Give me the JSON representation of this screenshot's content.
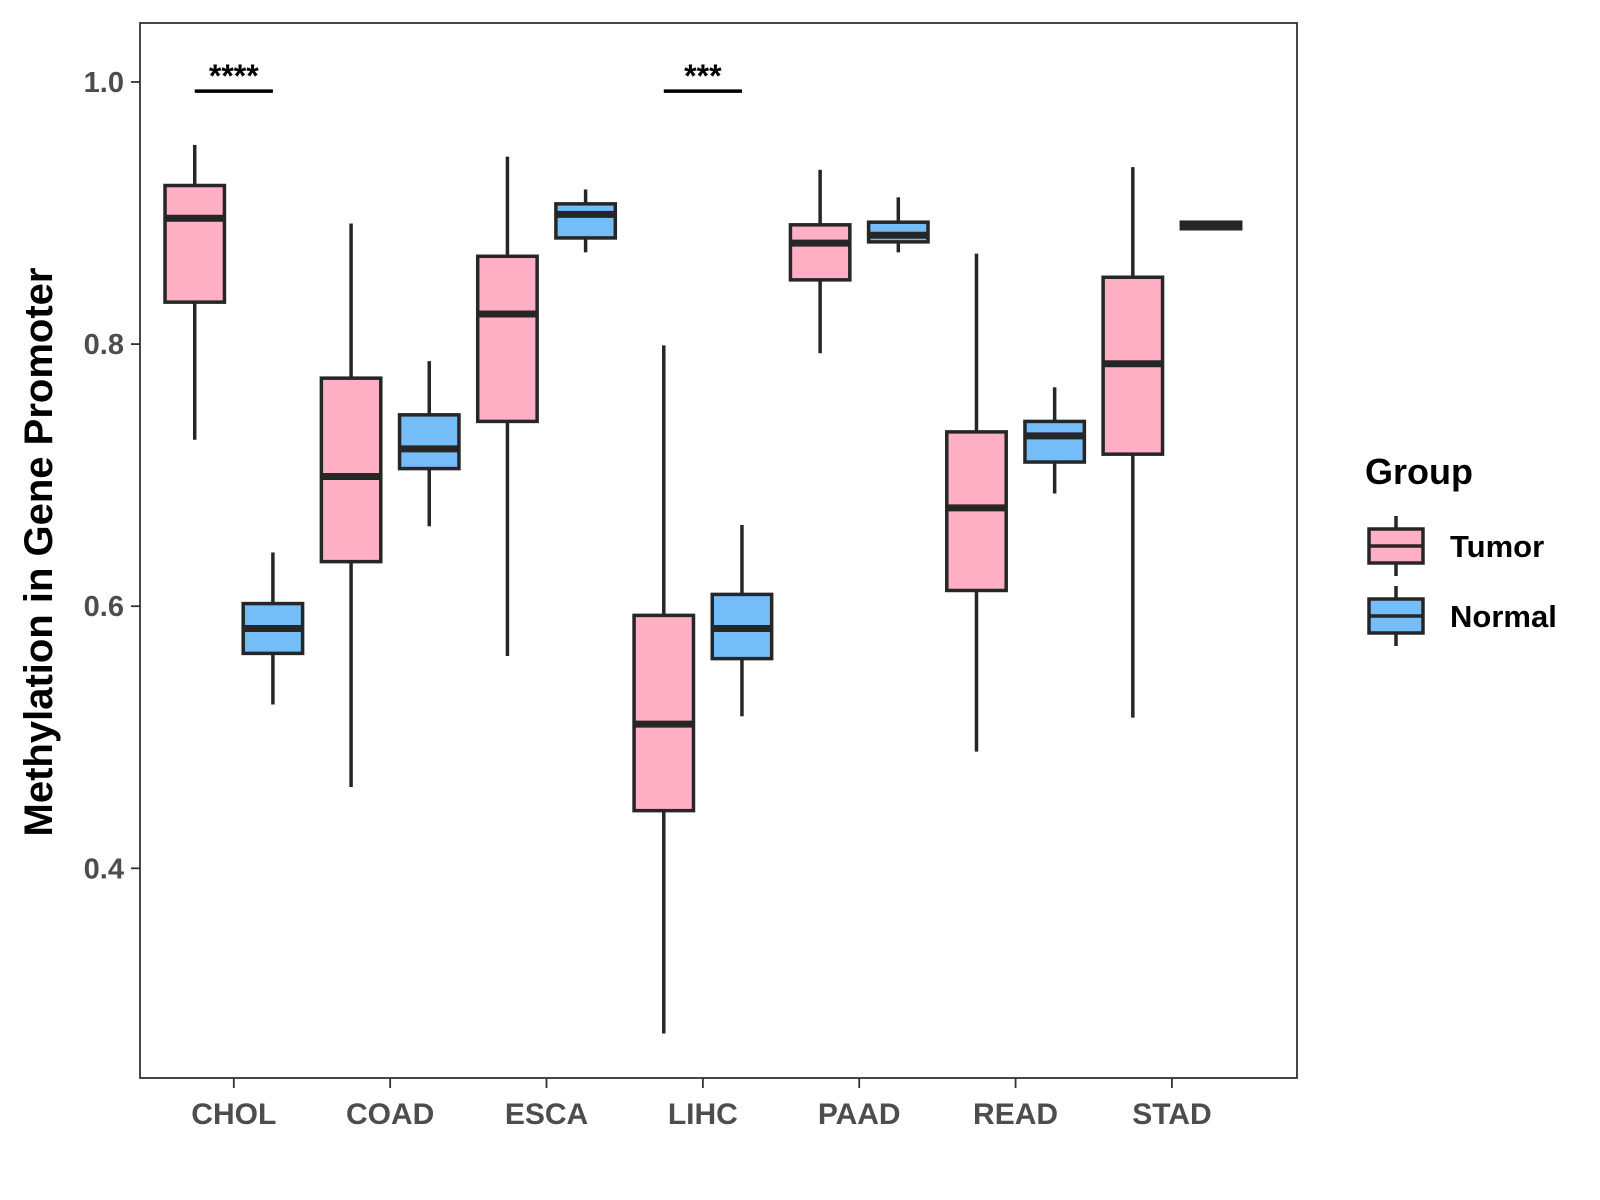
{
  "chart_data": {
    "type": "boxplot",
    "ylabel": "Methylation in Gene Promoter",
    "xlabel": "",
    "ylim": [
      0.24,
      1.045
    ],
    "yticks": [
      0.4,
      0.6,
      0.8,
      1.0
    ],
    "ytick_labels": [
      "0.4",
      "0.6",
      "0.8",
      "1.0"
    ],
    "categories": [
      "CHOL",
      "COAD",
      "ESCA",
      "LIHC",
      "PAAD",
      "READ",
      "STAD"
    ],
    "legend": {
      "title": "Group",
      "position": "right",
      "entries": [
        {
          "name": "Tumor",
          "color": "#ffb0c4"
        },
        {
          "name": "Normal",
          "color": "#74bdf8"
        }
      ]
    },
    "series": [
      {
        "name": "Tumor",
        "color": "#ffb0c4",
        "boxes": [
          {
            "category": "CHOL",
            "min": 0.727,
            "q1": 0.832,
            "median": 0.896,
            "q3": 0.921,
            "max": 0.952
          },
          {
            "category": "COAD",
            "min": 0.462,
            "q1": 0.634,
            "median": 0.699,
            "q3": 0.774,
            "max": 0.892
          },
          {
            "category": "ESCA",
            "min": 0.562,
            "q1": 0.741,
            "median": 0.823,
            "q3": 0.867,
            "max": 0.943
          },
          {
            "category": "LIHC",
            "min": 0.274,
            "q1": 0.444,
            "median": 0.51,
            "q3": 0.593,
            "max": 0.799
          },
          {
            "category": "PAAD",
            "min": 0.793,
            "q1": 0.849,
            "median": 0.877,
            "q3": 0.891,
            "max": 0.933
          },
          {
            "category": "READ",
            "min": 0.489,
            "q1": 0.612,
            "median": 0.675,
            "q3": 0.733,
            "max": 0.869
          },
          {
            "category": "STAD",
            "min": 0.515,
            "q1": 0.716,
            "median": 0.785,
            "q3": 0.851,
            "max": 0.935
          }
        ]
      },
      {
        "name": "Normal",
        "color": "#74bdf8",
        "boxes": [
          {
            "category": "CHOL",
            "min": 0.525,
            "q1": 0.564,
            "median": 0.583,
            "q3": 0.602,
            "max": 0.641
          },
          {
            "category": "COAD",
            "min": 0.661,
            "q1": 0.705,
            "median": 0.72,
            "q3": 0.746,
            "max": 0.787
          },
          {
            "category": "ESCA",
            "min": 0.87,
            "q1": 0.881,
            "median": 0.899,
            "q3": 0.907,
            "max": 0.918
          },
          {
            "category": "LIHC",
            "min": 0.516,
            "q1": 0.56,
            "median": 0.583,
            "q3": 0.609,
            "max": 0.662
          },
          {
            "category": "PAAD",
            "min": 0.87,
            "q1": 0.878,
            "median": 0.883,
            "q3": 0.893,
            "max": 0.912
          },
          {
            "category": "READ",
            "min": 0.686,
            "q1": 0.71,
            "median": 0.73,
            "q3": 0.741,
            "max": 0.767
          },
          {
            "category": "STAD",
            "min": 0.887,
            "q1": 0.888,
            "median": 0.89,
            "q3": 0.893,
            "max": 0.894
          }
        ]
      }
    ],
    "annotations": [
      {
        "category": "CHOL",
        "label": "****",
        "y": 0.993
      },
      {
        "category": "LIHC",
        "label": "***",
        "y": 0.993
      }
    ]
  }
}
